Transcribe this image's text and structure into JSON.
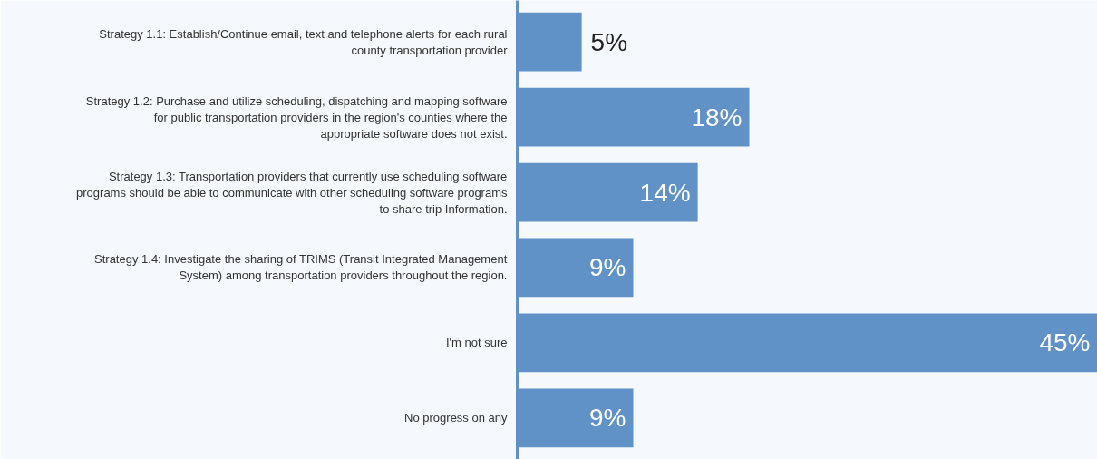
{
  "chart_data": {
    "type": "bar",
    "orientation": "horizontal",
    "categories": [
      "Strategy 1.1: Establish/Continue email, text and telephone alerts for each rural county transportation provider",
      "Strategy 1.2: Purchase and utilize scheduling, dispatching and mapping software for public transportation providers in the region's counties where the appropriate software does not exist.",
      "Strategy 1.3: Transportation providers that currently use scheduling software programs should be able to communicate with other scheduling software programs to share trip Information.",
      "Strategy 1.4: Investigate the sharing of TRIMS (Transit Integrated Management System) among transportation providers throughout the region.",
      "I'm not sure",
      "No progress on any"
    ],
    "values": [
      5,
      18,
      14,
      9,
      45,
      9
    ],
    "value_labels": [
      "5%",
      "18%",
      "14%",
      "9%",
      "45%",
      "9%"
    ],
    "color": "#6092c8",
    "data_labels": true,
    "grid": false,
    "tick_labels": "y"
  }
}
